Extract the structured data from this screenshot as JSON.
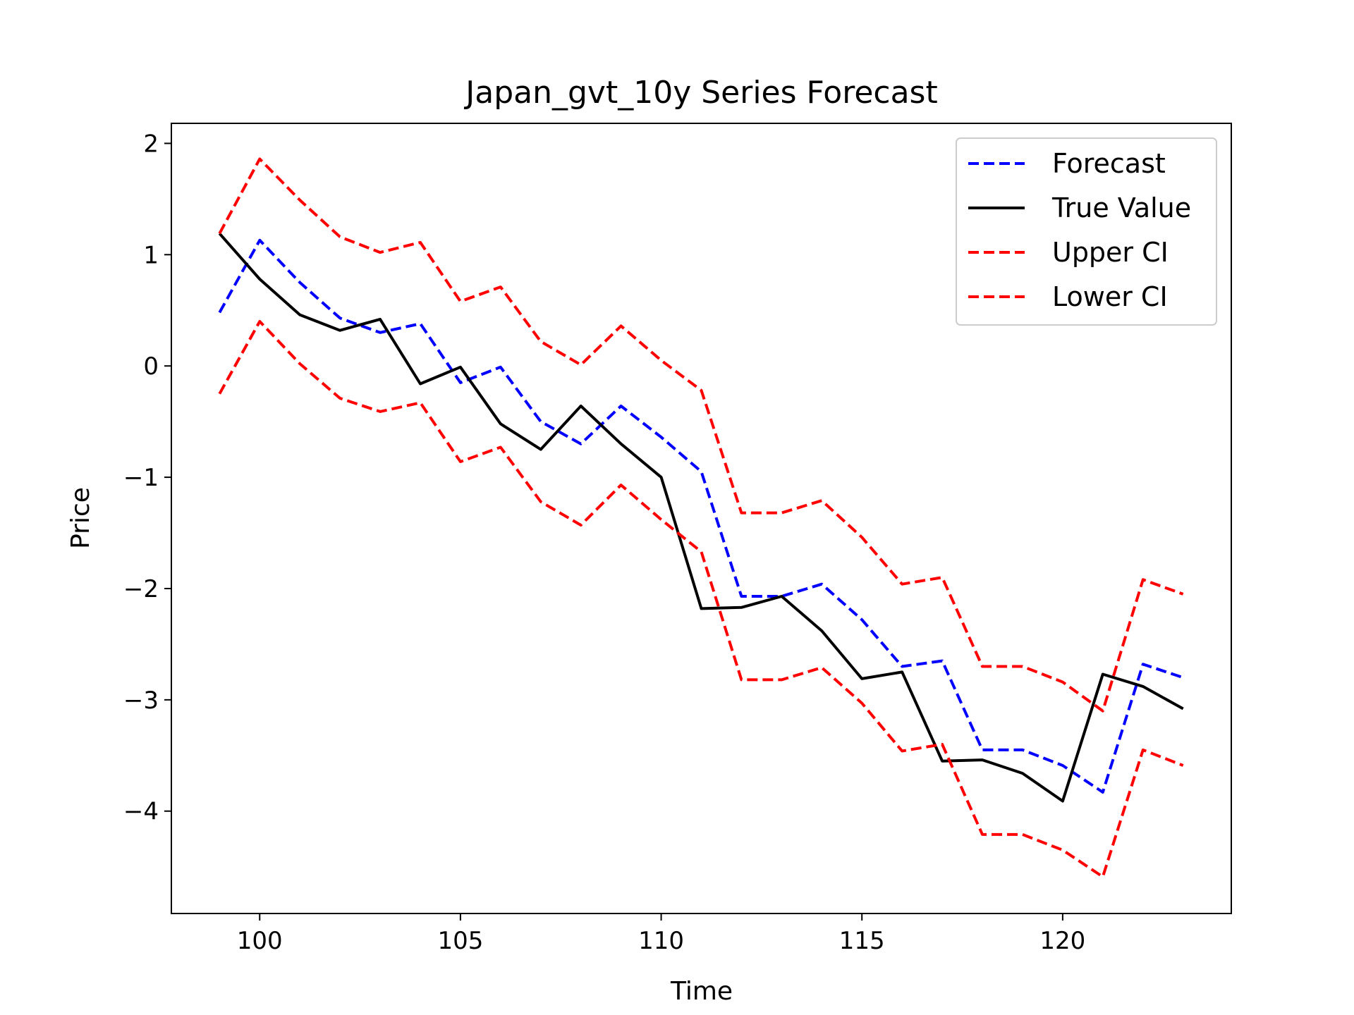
{
  "chart_data": {
    "type": "line",
    "title": "Japan_gvt_10y Series Forecast",
    "xlabel": "Time",
    "ylabel": "Price",
    "xlim": [
      97.8,
      124.2
    ],
    "ylim": [
      -4.92,
      2.18
    ],
    "x_ticks": [
      100,
      105,
      110,
      115,
      120
    ],
    "y_ticks": [
      2,
      1,
      0,
      -1,
      -2,
      -3,
      -4
    ],
    "y_tick_labels": [
      "2",
      "1",
      "0",
      "−1",
      "−2",
      "−3",
      "−4"
    ],
    "grid": false,
    "legend_position": "top-right",
    "x": [
      99,
      100,
      101,
      102,
      103,
      104,
      105,
      106,
      107,
      108,
      109,
      110,
      111,
      112,
      113,
      114,
      115,
      116,
      117,
      118,
      119,
      120,
      121,
      122,
      123
    ],
    "series": [
      {
        "name": "Forecast",
        "color": "#0000ff",
        "dash": true,
        "values": [
          0.48,
          1.13,
          0.75,
          0.43,
          0.3,
          0.38,
          -0.15,
          -0.01,
          -0.5,
          -0.7,
          -0.36,
          -0.64,
          -0.95,
          -2.07,
          -2.07,
          -1.96,
          -2.28,
          -2.7,
          -2.65,
          -3.45,
          -3.45,
          -3.59,
          -3.83,
          -2.68,
          -2.8
        ]
      },
      {
        "name": "True Value",
        "color": "#000000",
        "dash": false,
        "values": [
          1.19,
          0.78,
          0.46,
          0.32,
          0.42,
          -0.16,
          -0.01,
          -0.52,
          -0.75,
          -0.36,
          -0.7,
          -1.0,
          -2.18,
          -2.17,
          -2.07,
          -2.38,
          -2.81,
          -2.75,
          -3.55,
          -3.54,
          -3.66,
          -3.91,
          -2.77,
          -2.88,
          -3.08
        ]
      },
      {
        "name": "Upper CI",
        "color": "#ff0000",
        "dash": true,
        "values": [
          1.19,
          1.86,
          1.49,
          1.16,
          1.02,
          1.11,
          0.58,
          0.71,
          0.22,
          0.01,
          0.36,
          0.05,
          -0.22,
          -1.32,
          -1.32,
          -1.21,
          -1.54,
          -1.96,
          -1.9,
          -2.7,
          -2.7,
          -2.84,
          -3.1,
          -1.92,
          -2.05
        ]
      },
      {
        "name": "Lower CI",
        "color": "#ff0000",
        "dash": true,
        "values": [
          -0.25,
          0.4,
          0.02,
          -0.29,
          -0.41,
          -0.33,
          -0.86,
          -0.73,
          -1.22,
          -1.43,
          -1.07,
          -1.38,
          -1.67,
          -2.82,
          -2.82,
          -2.71,
          -3.03,
          -3.46,
          -3.4,
          -4.21,
          -4.21,
          -4.35,
          -4.59,
          -3.45,
          -3.59
        ]
      }
    ]
  }
}
